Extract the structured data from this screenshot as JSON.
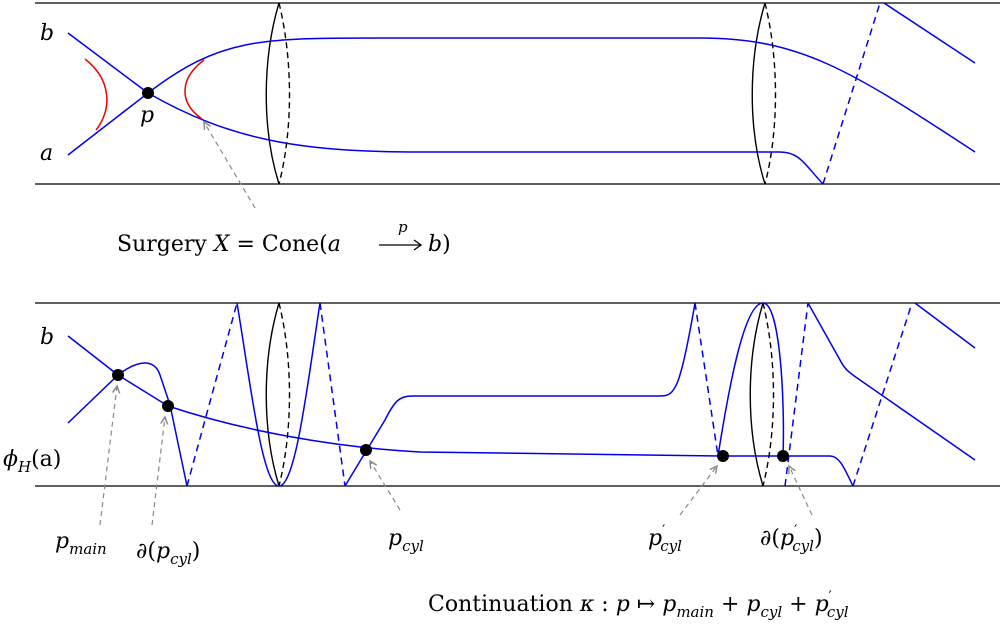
{
  "top_panel": {
    "label_b": "b",
    "label_a": "a",
    "label_p": "p",
    "caption": {
      "prefix": "Surgery ",
      "X": "X",
      "eq": " = Cone(",
      "a": "a",
      "arrow_label": "p",
      "b": "b",
      "close": ")"
    }
  },
  "bottom_panel": {
    "label_b": "b",
    "label_phi": "ϕ",
    "label_phi_sub": "H",
    "label_phi_arg": "(a)",
    "p_main": {
      "base": "p",
      "sub": "main"
    },
    "d_p_cyl": {
      "prefix": "∂(",
      "base": "p",
      "sub": "cyl",
      "suffix": ")"
    },
    "p_cyl": {
      "base": "p",
      "sub": "cyl"
    },
    "p_cyl_prime": {
      "base": "p",
      "sup": "′",
      "sub": "cyl"
    },
    "d_p_cyl_prime": {
      "prefix": "∂(",
      "base": "p",
      "sup": "′",
      "sub": "cyl",
      "suffix": ")"
    },
    "caption": {
      "prefix": "Continuation ",
      "kappa": "κ",
      "colon": " : ",
      "p": "p",
      "mapsto": " ↦ ",
      "t1": "p",
      "t1_sub": "main",
      "plus1": " + ",
      "t2": "p",
      "t2_sub": "cyl",
      "plus2": " + ",
      "t3": "p",
      "t3_sup": "′",
      "t3_sub": "cyl"
    }
  },
  "colors": {
    "curve": "#0000ee",
    "surgery": "#ee0000",
    "frame": "#000000",
    "pointer": "#888888"
  }
}
